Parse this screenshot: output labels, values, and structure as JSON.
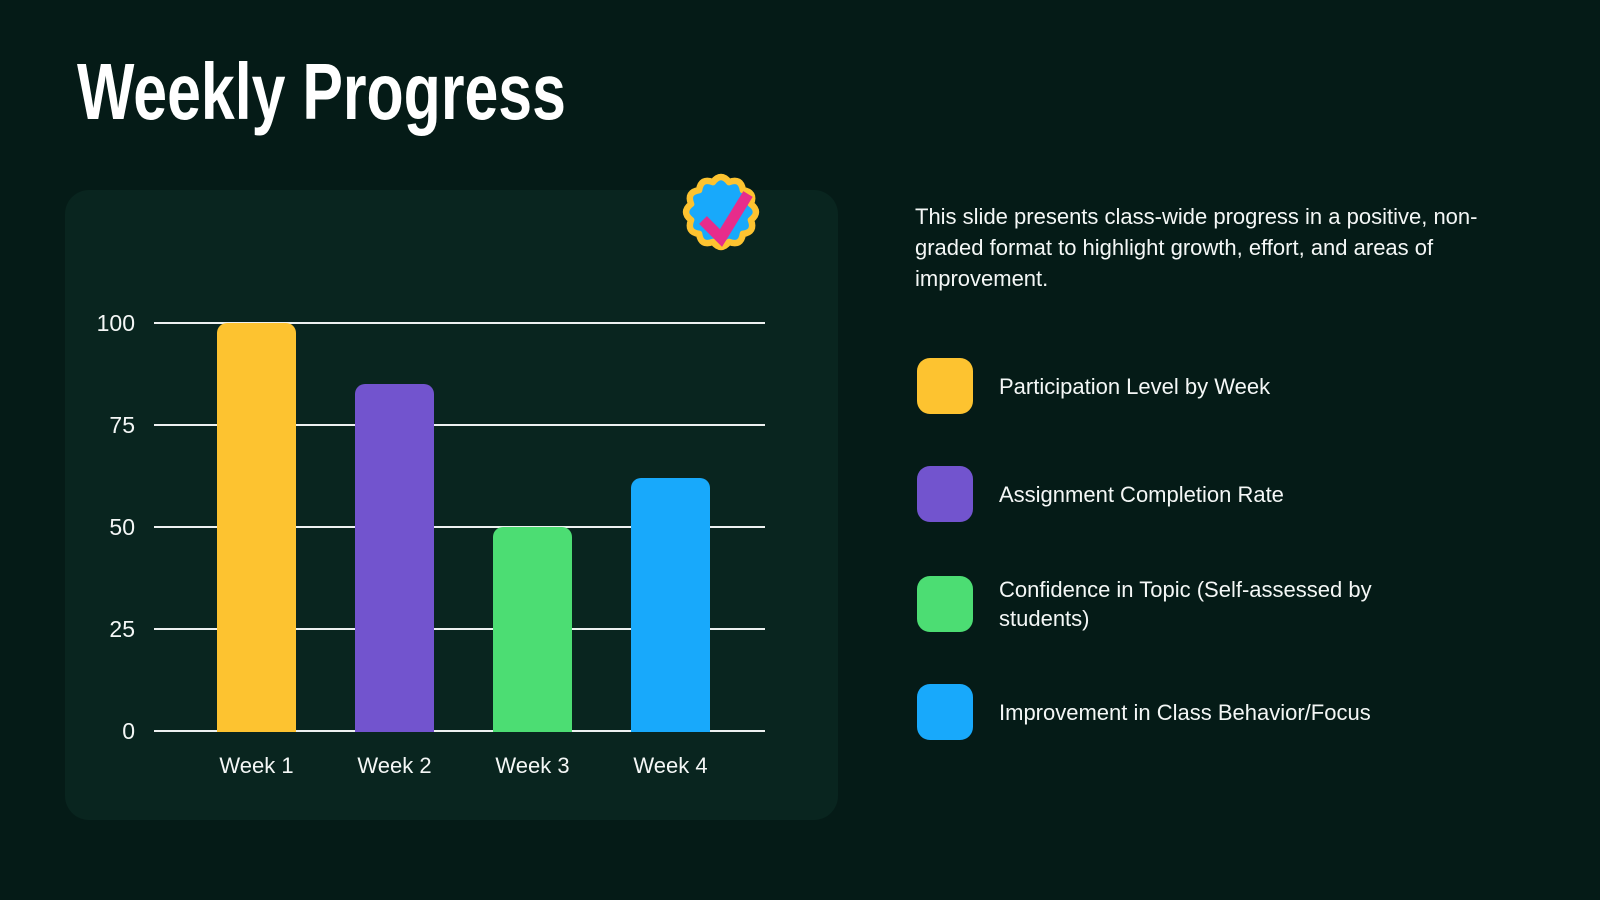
{
  "title": "Weekly Progress",
  "description": "This slide presents class-wide progress in a positive, non-graded format to highlight growth, effort, and areas of improvement.",
  "colors": {
    "background": "#051B17",
    "panel": "#09251F",
    "text": "#F4F7F6",
    "gridline": "#EDF1F0"
  },
  "badge": {
    "name": "verified-checkmark-badge",
    "fill": "#18A9FB",
    "ring": "#FDC330",
    "check": "#E72C8B"
  },
  "chart_data": {
    "type": "bar",
    "title": "",
    "xlabel": "",
    "ylabel": "",
    "categories": [
      "Week 1",
      "Week 2",
      "Week 3",
      "Week 4"
    ],
    "values": [
      100,
      85,
      50,
      62
    ],
    "bar_colors": [
      "#FDC330",
      "#7254CE",
      "#4CDD73",
      "#18A9FB"
    ],
    "yticks": [
      0,
      25,
      50,
      75,
      100
    ],
    "ylim": [
      0,
      100
    ],
    "grid": true,
    "legend_position": "right"
  },
  "legend": {
    "items": [
      {
        "label": "Participation Level by Week",
        "color": "#FDC330"
      },
      {
        "label": "Assignment Completion Rate",
        "color": "#7254CE"
      },
      {
        "label": "Confidence in Topic (Self-assessed by students)",
        "color": "#4CDD73"
      },
      {
        "label": "Improvement in Class Behavior/Focus",
        "color": "#18A9FB"
      }
    ]
  }
}
